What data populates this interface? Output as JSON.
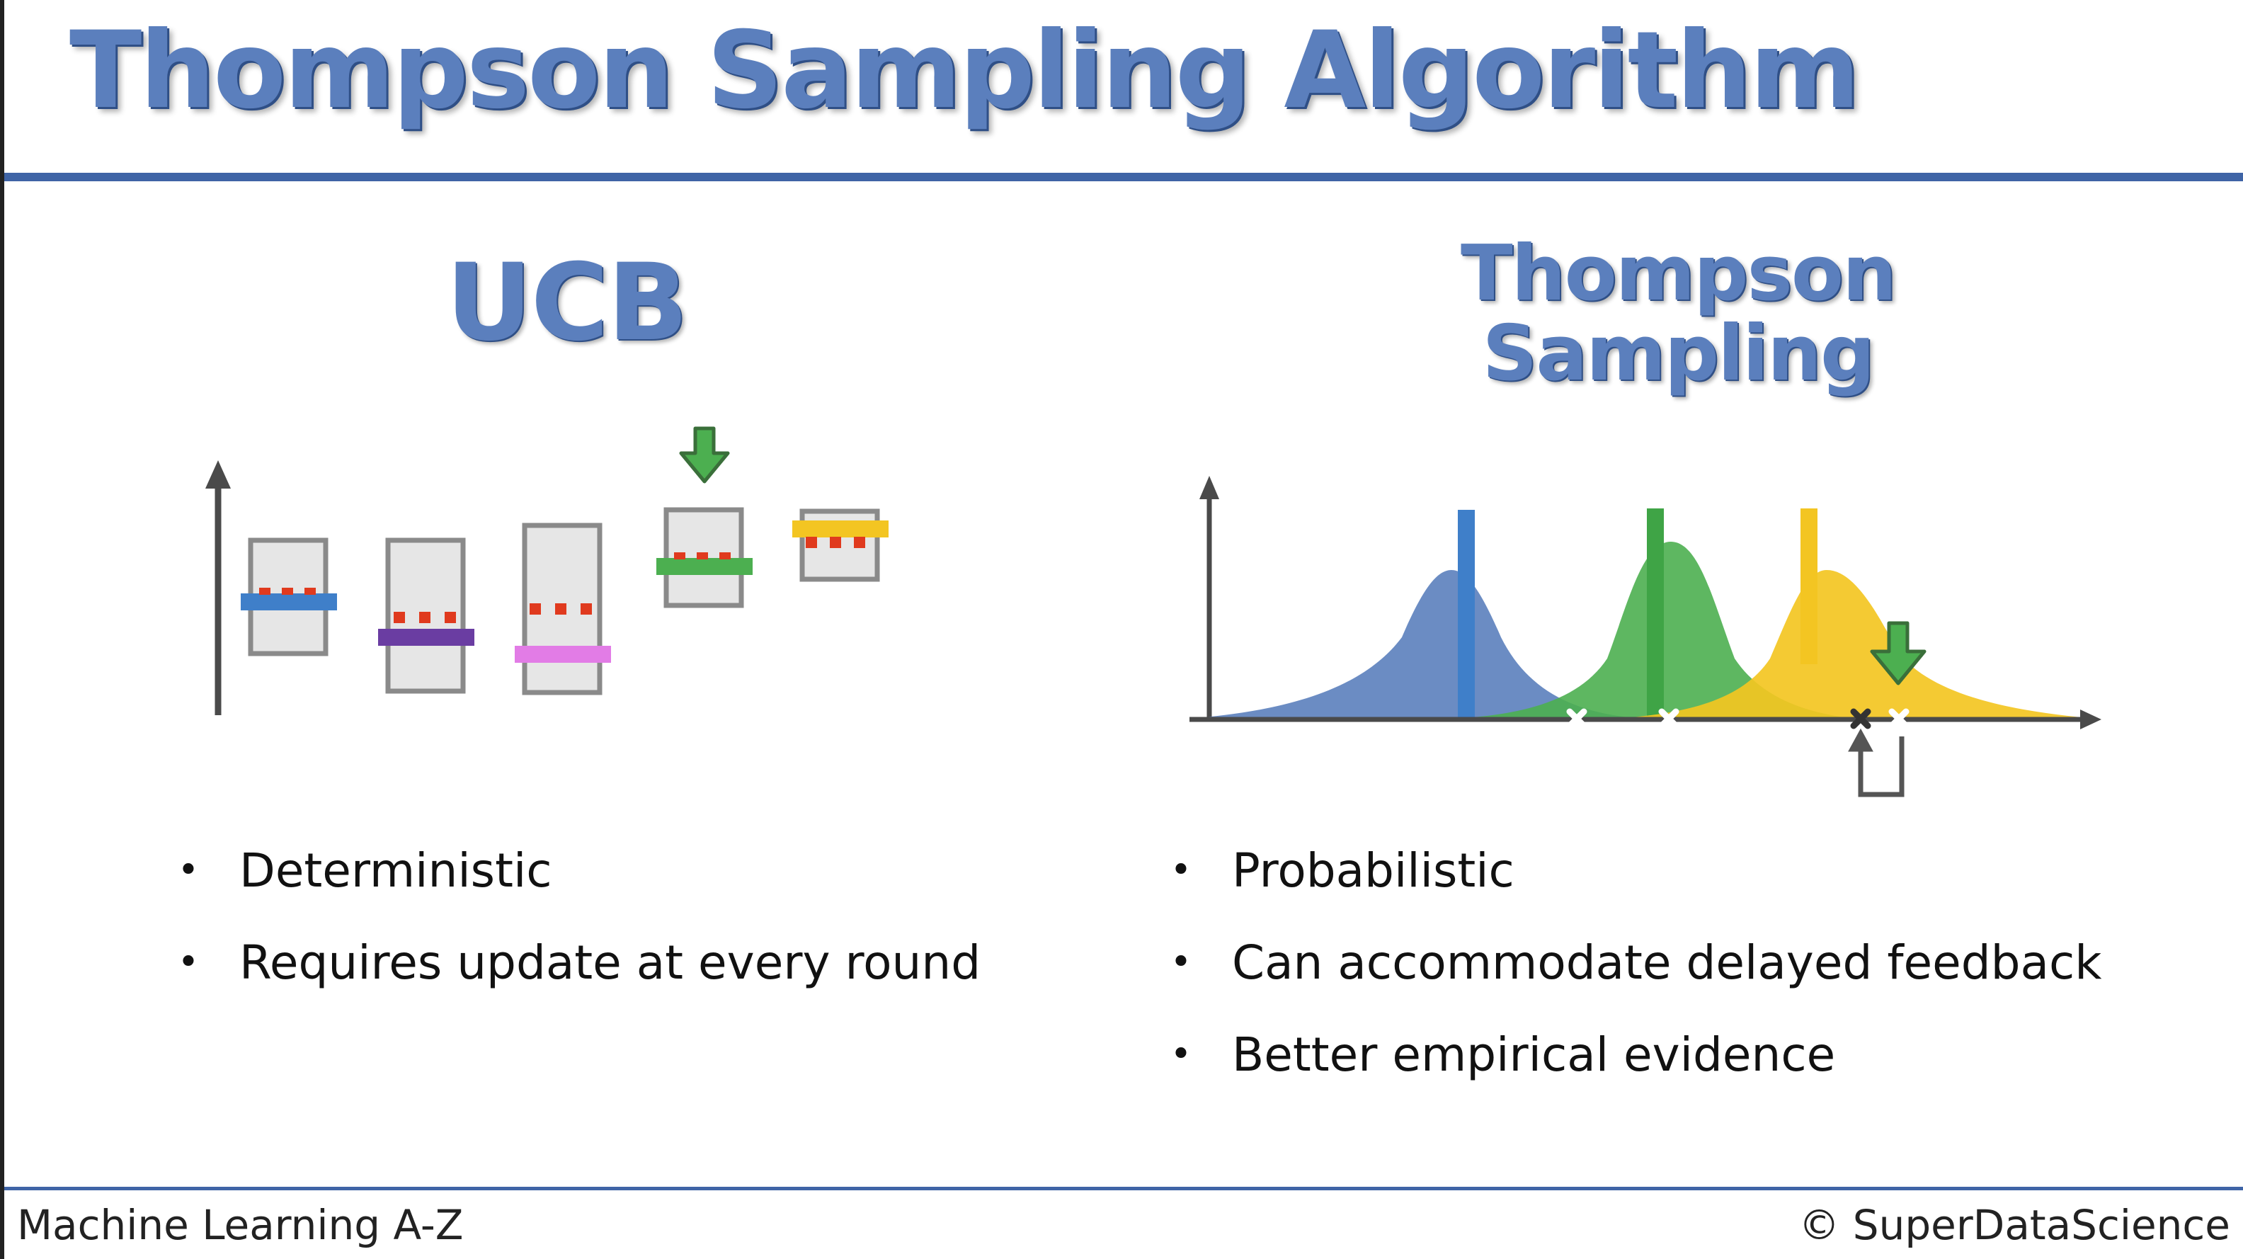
{
  "slide": {
    "title": "Thompson Sampling Algorithm"
  },
  "ucb": {
    "heading": "UCB",
    "bullets": [
      "Deterministic",
      "Requires update at every round"
    ]
  },
  "thompson": {
    "heading_line1": "Thompson",
    "heading_line2": "Sampling",
    "bullets": [
      "Probabilistic",
      "Can accommodate delayed feedback",
      "Better empirical evidence"
    ]
  },
  "footer": {
    "left": "Machine Learning A-Z",
    "right": "© SuperDataScience"
  },
  "colors": {
    "title": "#5b7fbd",
    "rule": "#3f64a6",
    "blue": "#3f7fc9",
    "purple": "#6a3da2",
    "pink": "#e27ce6",
    "green": "#4caf50",
    "yellow": "#f3c522",
    "red_dash": "#e03a1e",
    "arrow_green": "#3b8f3b"
  },
  "bullet_glyph": "•",
  "icons": [
    "down-arrow-icon",
    "return-arrow-icon",
    "x-mark-icon"
  ]
}
